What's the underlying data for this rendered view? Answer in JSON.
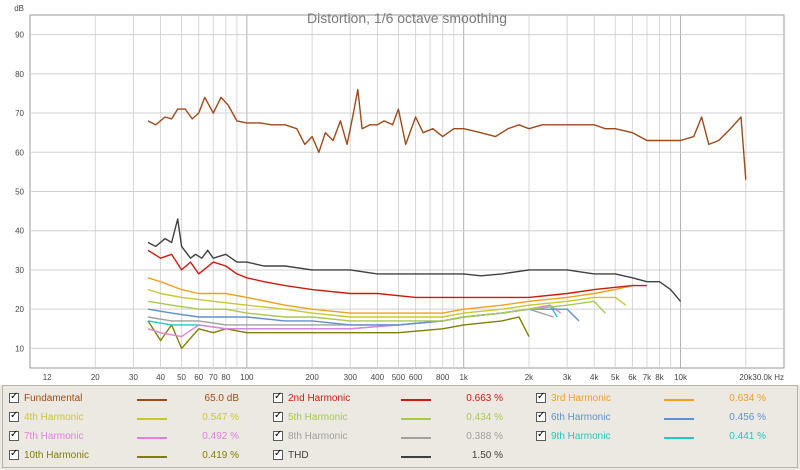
{
  "chart_data": {
    "type": "line",
    "title": "Distortion, 1/6 octave smoothing",
    "ylabel": "dB",
    "xunit": "Hz",
    "xscale": "log",
    "xlim": [
      10,
      30000
    ],
    "ylim": [
      5,
      95
    ],
    "x_ticks": [
      {
        "v": 12,
        "label": "12"
      },
      {
        "v": 20,
        "label": "20"
      },
      {
        "v": 30,
        "label": "30"
      },
      {
        "v": 40,
        "label": "40"
      },
      {
        "v": 50,
        "label": "50"
      },
      {
        "v": 60,
        "label": "60"
      },
      {
        "v": 70,
        "label": "70"
      },
      {
        "v": 80,
        "label": "80"
      },
      {
        "v": 100,
        "label": "100"
      },
      {
        "v": 200,
        "label": "200"
      },
      {
        "v": 300,
        "label": "300"
      },
      {
        "v": 400,
        "label": "400"
      },
      {
        "v": 500,
        "label": "500"
      },
      {
        "v": 600,
        "label": "600"
      },
      {
        "v": 800,
        "label": "800"
      },
      {
        "v": 1000,
        "label": "1k"
      },
      {
        "v": 2000,
        "label": "2k"
      },
      {
        "v": 3000,
        "label": "3k"
      },
      {
        "v": 4000,
        "label": "4k"
      },
      {
        "v": 5000,
        "label": "5k"
      },
      {
        "v": 6000,
        "label": "6k"
      },
      {
        "v": 7000,
        "label": "7k"
      },
      {
        "v": 8000,
        "label": "8k"
      },
      {
        "v": 10000,
        "label": "10k"
      },
      {
        "v": 20000,
        "label": "20k"
      },
      {
        "v": 30000,
        "label": "30.0k Hz"
      }
    ],
    "y_ticks": [
      10,
      20,
      30,
      40,
      50,
      60,
      70,
      80,
      90
    ],
    "grid": true,
    "series": [
      {
        "name": "Fundamental",
        "color": "#9c4a1a",
        "value": "65.0 dB",
        "points": [
          [
            35,
            68
          ],
          [
            38,
            67
          ],
          [
            42,
            69
          ],
          [
            45,
            68.5
          ],
          [
            48,
            71
          ],
          [
            52,
            71
          ],
          [
            56,
            68.5
          ],
          [
            60,
            70
          ],
          [
            64,
            74
          ],
          [
            70,
            70
          ],
          [
            76,
            74
          ],
          [
            82,
            72
          ],
          [
            90,
            68
          ],
          [
            100,
            67.5
          ],
          [
            115,
            67.5
          ],
          [
            130,
            67
          ],
          [
            150,
            67
          ],
          [
            170,
            66
          ],
          [
            185,
            62
          ],
          [
            200,
            64
          ],
          [
            215,
            60
          ],
          [
            230,
            65
          ],
          [
            250,
            63
          ],
          [
            270,
            68
          ],
          [
            290,
            62
          ],
          [
            310,
            70
          ],
          [
            325,
            76
          ],
          [
            340,
            66
          ],
          [
            370,
            67
          ],
          [
            400,
            67
          ],
          [
            430,
            68
          ],
          [
            470,
            67
          ],
          [
            500,
            71
          ],
          [
            540,
            62
          ],
          [
            600,
            69
          ],
          [
            650,
            65
          ],
          [
            720,
            66
          ],
          [
            800,
            64
          ],
          [
            900,
            66
          ],
          [
            1000,
            66
          ],
          [
            1200,
            65
          ],
          [
            1400,
            64
          ],
          [
            1600,
            66
          ],
          [
            1800,
            67
          ],
          [
            2000,
            66
          ],
          [
            2300,
            67
          ],
          [
            2600,
            67
          ],
          [
            3000,
            67
          ],
          [
            3500,
            67
          ],
          [
            4000,
            67
          ],
          [
            4500,
            66
          ],
          [
            5000,
            66
          ],
          [
            6000,
            65
          ],
          [
            7000,
            63
          ],
          [
            8000,
            63
          ],
          [
            9000,
            63
          ],
          [
            10000,
            63
          ],
          [
            11500,
            64
          ],
          [
            12500,
            69
          ],
          [
            13500,
            62
          ],
          [
            15000,
            63
          ],
          [
            17000,
            66
          ],
          [
            19000,
            69
          ],
          [
            20000,
            53
          ]
        ]
      },
      {
        "name": "2nd Harmonic",
        "color": "#cc1a10",
        "value": "0.663 %",
        "points": [
          [
            35,
            35
          ],
          [
            40,
            33
          ],
          [
            45,
            34
          ],
          [
            50,
            30
          ],
          [
            55,
            32
          ],
          [
            60,
            29
          ],
          [
            70,
            32
          ],
          [
            80,
            31
          ],
          [
            90,
            29
          ],
          [
            100,
            28
          ],
          [
            120,
            27
          ],
          [
            150,
            26
          ],
          [
            200,
            25
          ],
          [
            300,
            24
          ],
          [
            400,
            24
          ],
          [
            600,
            23
          ],
          [
            800,
            23
          ],
          [
            1000,
            23
          ],
          [
            1500,
            23
          ],
          [
            2000,
            23
          ],
          [
            3000,
            24
          ],
          [
            4000,
            25
          ],
          [
            6000,
            26
          ],
          [
            7000,
            26
          ]
        ]
      },
      {
        "name": "3rd Harmonic",
        "color": "#f0a020",
        "value": "0.634 %",
        "points": [
          [
            35,
            28
          ],
          [
            40,
            27
          ],
          [
            50,
            25
          ],
          [
            60,
            24
          ],
          [
            80,
            24
          ],
          [
            100,
            23
          ],
          [
            150,
            21
          ],
          [
            200,
            20
          ],
          [
            300,
            19
          ],
          [
            500,
            19
          ],
          [
            800,
            19
          ],
          [
            1000,
            20
          ],
          [
            1500,
            21
          ],
          [
            2000,
            22
          ],
          [
            3000,
            23
          ],
          [
            4000,
            24
          ],
          [
            5000,
            25
          ],
          [
            6000,
            26
          ]
        ]
      },
      {
        "name": "4th Harmonic",
        "color": "#c8c830",
        "value": "0.547 %",
        "points": [
          [
            35,
            25
          ],
          [
            40,
            24
          ],
          [
            50,
            23
          ],
          [
            70,
            22
          ],
          [
            100,
            21
          ],
          [
            150,
            20
          ],
          [
            200,
            19
          ],
          [
            300,
            18
          ],
          [
            500,
            18
          ],
          [
            800,
            18
          ],
          [
            1000,
            19
          ],
          [
            1500,
            20
          ],
          [
            2000,
            21
          ],
          [
            3000,
            22
          ],
          [
            4000,
            23
          ],
          [
            5000,
            23
          ],
          [
            5600,
            21
          ]
        ]
      },
      {
        "name": "5th Harmonic",
        "color": "#a8c850",
        "value": "0.434 %",
        "points": [
          [
            35,
            22
          ],
          [
            45,
            21
          ],
          [
            60,
            20
          ],
          [
            80,
            20
          ],
          [
            100,
            19
          ],
          [
            150,
            18
          ],
          [
            200,
            18
          ],
          [
            300,
            17
          ],
          [
            500,
            17
          ],
          [
            800,
            17
          ],
          [
            1000,
            18
          ],
          [
            1500,
            19
          ],
          [
            2000,
            20
          ],
          [
            3000,
            21
          ],
          [
            4000,
            22
          ],
          [
            4500,
            19
          ]
        ]
      },
      {
        "name": "6th Harmonic",
        "color": "#6090d0",
        "value": "0.456 %",
        "points": [
          [
            35,
            20
          ],
          [
            45,
            19
          ],
          [
            60,
            18
          ],
          [
            80,
            18
          ],
          [
            100,
            18
          ],
          [
            150,
            17
          ],
          [
            200,
            17
          ],
          [
            300,
            16
          ],
          [
            500,
            16
          ],
          [
            800,
            17
          ],
          [
            1000,
            18
          ],
          [
            1500,
            19
          ],
          [
            2000,
            20
          ],
          [
            3000,
            20
          ],
          [
            3400,
            17
          ]
        ]
      },
      {
        "name": "7th Harmonic",
        "color": "#e080e0",
        "value": "0.492 %",
        "points": [
          [
            35,
            15
          ],
          [
            40,
            14
          ],
          [
            50,
            13
          ],
          [
            60,
            16
          ],
          [
            80,
            15
          ],
          [
            100,
            15
          ],
          [
            150,
            15
          ],
          [
            200,
            15
          ],
          [
            300,
            15
          ],
          [
            500,
            16
          ],
          [
            800,
            17
          ],
          [
            1000,
            18
          ],
          [
            1500,
            19
          ],
          [
            2000,
            20
          ],
          [
            2500,
            21
          ],
          [
            2800,
            19
          ]
        ]
      },
      {
        "name": "8th Harmonic",
        "color": "#a0a0a0",
        "value": "0.388 %",
        "points": [
          [
            35,
            18
          ],
          [
            45,
            17
          ],
          [
            60,
            17
          ],
          [
            80,
            16
          ],
          [
            100,
            16
          ],
          [
            150,
            16
          ],
          [
            200,
            16
          ],
          [
            300,
            16
          ],
          [
            500,
            16
          ],
          [
            800,
            17
          ],
          [
            1000,
            18
          ],
          [
            1500,
            19
          ],
          [
            2000,
            20
          ],
          [
            2600,
            18
          ]
        ]
      },
      {
        "name": "9th Harmonic",
        "color": "#20c8c0",
        "value": "0.441 %",
        "points": [
          [
            35,
            17
          ],
          [
            45,
            16
          ],
          [
            60,
            16
          ],
          [
            80,
            15
          ],
          [
            100,
            15
          ],
          [
            150,
            15
          ],
          [
            200,
            15
          ],
          [
            300,
            15
          ],
          [
            500,
            16
          ],
          [
            800,
            17
          ],
          [
            1000,
            18
          ],
          [
            1500,
            19
          ],
          [
            2000,
            20
          ],
          [
            2500,
            21
          ],
          [
            2700,
            18
          ]
        ]
      },
      {
        "name": "10th Harmonic",
        "color": "#808000",
        "value": "0.419 %",
        "points": [
          [
            35,
            17
          ],
          [
            40,
            12
          ],
          [
            45,
            16
          ],
          [
            50,
            10
          ],
          [
            60,
            15
          ],
          [
            70,
            14
          ],
          [
            80,
            15
          ],
          [
            100,
            14
          ],
          [
            150,
            14
          ],
          [
            200,
            14
          ],
          [
            300,
            14
          ],
          [
            500,
            14
          ],
          [
            800,
            15
          ],
          [
            1000,
            16
          ],
          [
            1500,
            17
          ],
          [
            1800,
            18
          ],
          [
            2000,
            13
          ]
        ]
      },
      {
        "name": "THD",
        "color": "#404040",
        "value": "1.50 %",
        "points": [
          [
            35,
            37
          ],
          [
            38,
            36
          ],
          [
            42,
            38
          ],
          [
            45,
            37
          ],
          [
            48,
            43
          ],
          [
            50,
            36
          ],
          [
            55,
            33
          ],
          [
            58,
            34
          ],
          [
            62,
            33
          ],
          [
            66,
            35
          ],
          [
            70,
            33
          ],
          [
            80,
            34
          ],
          [
            90,
            32
          ],
          [
            100,
            32
          ],
          [
            120,
            31
          ],
          [
            150,
            31
          ],
          [
            200,
            30
          ],
          [
            300,
            30
          ],
          [
            400,
            29
          ],
          [
            600,
            29
          ],
          [
            800,
            29
          ],
          [
            1000,
            29
          ],
          [
            1200,
            28.5
          ],
          [
            1500,
            29
          ],
          [
            2000,
            30
          ],
          [
            3000,
            30
          ],
          [
            4000,
            29
          ],
          [
            5000,
            29
          ],
          [
            6000,
            28
          ],
          [
            7000,
            27
          ],
          [
            8000,
            27
          ],
          [
            9000,
            25
          ],
          [
            10000,
            22
          ]
        ]
      }
    ]
  }
}
